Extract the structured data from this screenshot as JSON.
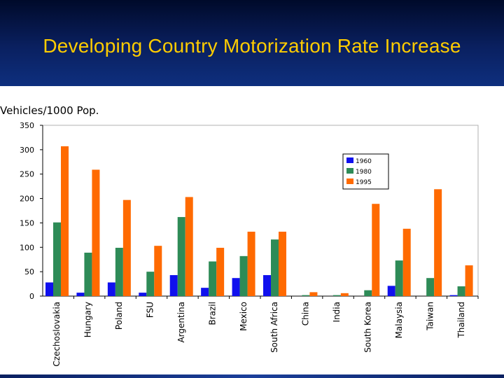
{
  "slide": {
    "title": "Developing Country Motorization Rate Increase"
  },
  "colors": {
    "header_background": "#0e2f7e",
    "title_text": "#ffcc00",
    "series_1960": "#1010ee",
    "series_1980": "#2e8b57",
    "series_1995": "#ff6a00"
  },
  "chart_data": {
    "type": "bar",
    "title": "",
    "ylabel": "Vehicles/1000 Pop.",
    "xlabel": "",
    "ylim": [
      0,
      350
    ],
    "yticks": [
      0,
      50,
      100,
      150,
      200,
      250,
      300,
      350
    ],
    "grid": false,
    "legend_position": "top-right",
    "categories": [
      "Czechoslovakia",
      "Hungary",
      "Poland",
      "FSU",
      "Argentina",
      "Brazil",
      "Mexico",
      "South Africa",
      "China",
      "India",
      "South Korea",
      "Malaysia",
      "Taiwan",
      "Thailand"
    ],
    "series": [
      {
        "name": "1960",
        "color": "#1010ee",
        "values": [
          28,
          7,
          28,
          7,
          43,
          17,
          37,
          43,
          0,
          0,
          0,
          21,
          0,
          2
        ]
      },
      {
        "name": "1980",
        "color": "#2e8b57",
        "values": [
          151,
          89,
          99,
          50,
          162,
          71,
          82,
          116,
          2,
          2,
          12,
          73,
          37,
          20
        ]
      },
      {
        "name": "1995",
        "color": "#ff6a00",
        "values": [
          307,
          259,
          197,
          103,
          203,
          99,
          132,
          132,
          8,
          6,
          189,
          138,
          219,
          63
        ]
      }
    ]
  }
}
